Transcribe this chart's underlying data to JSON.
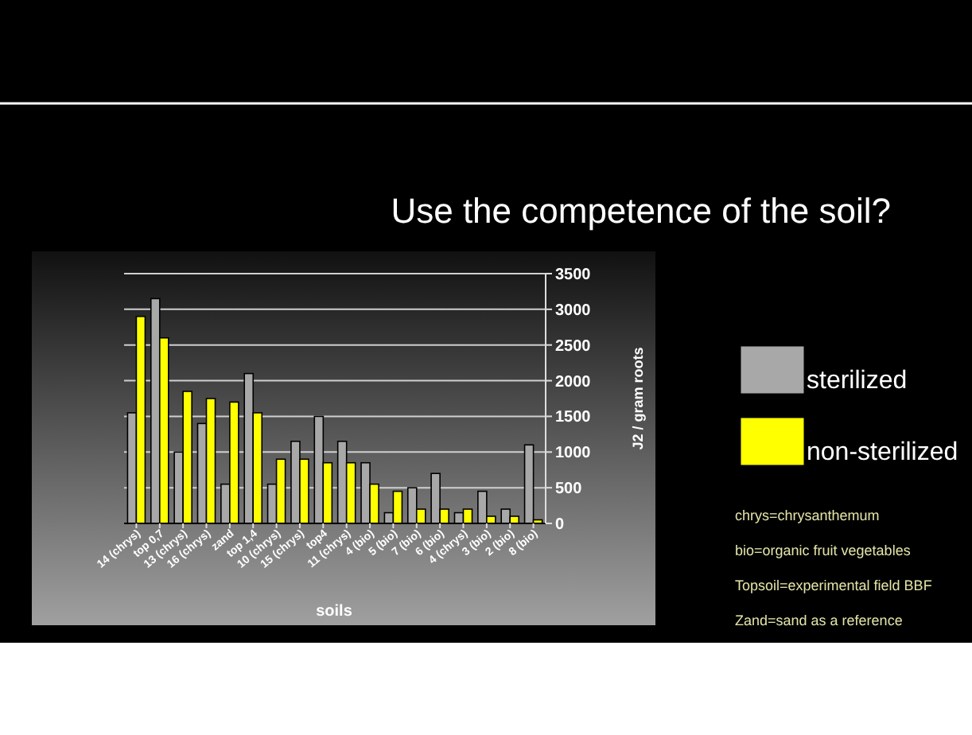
{
  "chart_data": {
    "type": "bar",
    "title": "Use the competence of the soil?",
    "xlabel": "soils",
    "ylabel": "J2 / gram roots",
    "categories": [
      "14 (chrys)",
      "top 0,7",
      "13 (chrys)",
      "16 (chrys)",
      "zand",
      "top 1,4",
      "10 (chrys)",
      "15 (chrys)",
      "top4",
      "11 (chrys)",
      "4 (bio)",
      "5 (bio)",
      "7 (bio)",
      "6 (bio)",
      "4 (chrys)",
      "3 (bio)",
      "2 (bio)",
      "8 (bio)"
    ],
    "series": [
      {
        "name": "sterilized",
        "color": "#a8a8a8",
        "values": [
          1550,
          3150,
          1000,
          1400,
          550,
          2100,
          550,
          1150,
          1500,
          1150,
          850,
          150,
          500,
          700,
          150,
          450,
          200,
          1100
        ]
      },
      {
        "name": "non-sterilized",
        "color": "#ffff00",
        "values": [
          2900,
          2600,
          1850,
          1750,
          1700,
          1550,
          900,
          900,
          850,
          850,
          550,
          450,
          200,
          200,
          200,
          100,
          100,
          50
        ]
      }
    ],
    "ylim": [
      0,
      3500
    ],
    "yticks": [
      0,
      500,
      1000,
      1500,
      2000,
      2500,
      3000,
      3500
    ],
    "grid": "y",
    "legend": "right",
    "annotations": [
      "chrys=chrysanthemum",
      "bio=organic fruit vegetables",
      "Topsoil=experimental field BBF",
      "Zand=sand as a reference"
    ]
  }
}
